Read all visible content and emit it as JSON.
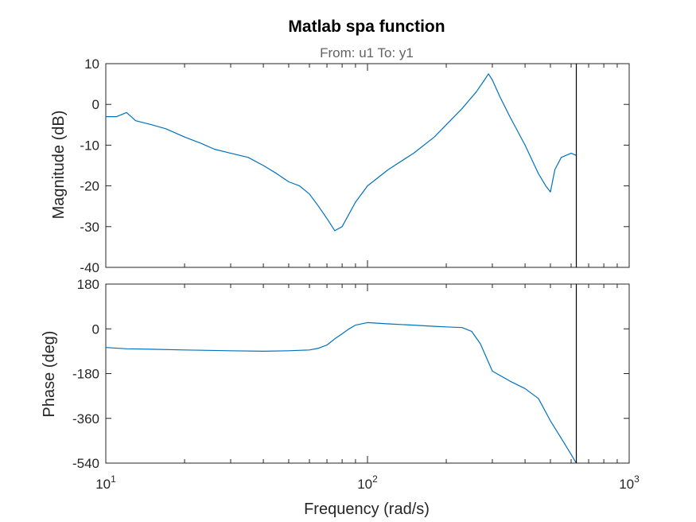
{
  "chart_data": {
    "type": "line",
    "title": "Matlab spa function",
    "subtitle": "From: u1  To: y1",
    "xlabel": "Frequency  (rad/s)",
    "x_scale": "log",
    "xlim": [
      10,
      1000
    ],
    "x_tick_labels": [
      {
        "base": "10",
        "exp": "1",
        "value": 10
      },
      {
        "base": "10",
        "exp": "2",
        "value": 100
      },
      {
        "base": "10",
        "exp": "3",
        "value": 1000
      }
    ],
    "nyquist_marker_x": 628,
    "line_color": "#0072BD",
    "grid": false,
    "panels": [
      {
        "name": "magnitude",
        "ylabel": "Magnitude (dB)",
        "ylim": [
          -40,
          10
        ],
        "y_ticks": [
          10,
          0,
          -10,
          -20,
          -30,
          -40
        ],
        "y_tick_labels": [
          "10",
          "0",
          "-10",
          "-20",
          "-30",
          "-40"
        ],
        "x": [
          10,
          11,
          12,
          13,
          15,
          17,
          20,
          23,
          26,
          30,
          35,
          40,
          45,
          50,
          55,
          60,
          65,
          70,
          75,
          80,
          90,
          100,
          120,
          150,
          180,
          200,
          230,
          260,
          280,
          290,
          300,
          320,
          350,
          400,
          450,
          480,
          500,
          520,
          550,
          600,
          628
        ],
        "y": [
          -3,
          -3,
          -2,
          -4,
          -5,
          -6,
          -8,
          -9.5,
          -11,
          -12,
          -13,
          -15,
          -17,
          -19,
          -20,
          -22,
          -25,
          -28,
          -31,
          -30,
          -24,
          -20,
          -16,
          -12,
          -8,
          -5,
          -1,
          3,
          6,
          7.5,
          6,
          2,
          -3,
          -10,
          -17,
          -20,
          -21.5,
          -16,
          -13,
          -12,
          -12.5
        ]
      },
      {
        "name": "phase",
        "ylabel": "Phase (deg)",
        "ylim": [
          -540,
          180
        ],
        "y_ticks": [
          180,
          0,
          -180,
          -360,
          -540
        ],
        "y_tick_labels": [
          "180",
          "0",
          "-180",
          "-360",
          "-540"
        ],
        "x": [
          10,
          12,
          15,
          20,
          30,
          40,
          50,
          60,
          65,
          70,
          75,
          80,
          85,
          90,
          100,
          120,
          150,
          180,
          200,
          230,
          250,
          270,
          300,
          350,
          400,
          450,
          500,
          550,
          600,
          628
        ],
        "y": [
          -75,
          -80,
          -82,
          -85,
          -88,
          -90,
          -88,
          -85,
          -78,
          -65,
          -40,
          -20,
          0,
          15,
          25,
          20,
          15,
          10,
          8,
          5,
          -10,
          -60,
          -170,
          -210,
          -240,
          -280,
          -370,
          -440,
          -505,
          -540
        ]
      }
    ]
  }
}
